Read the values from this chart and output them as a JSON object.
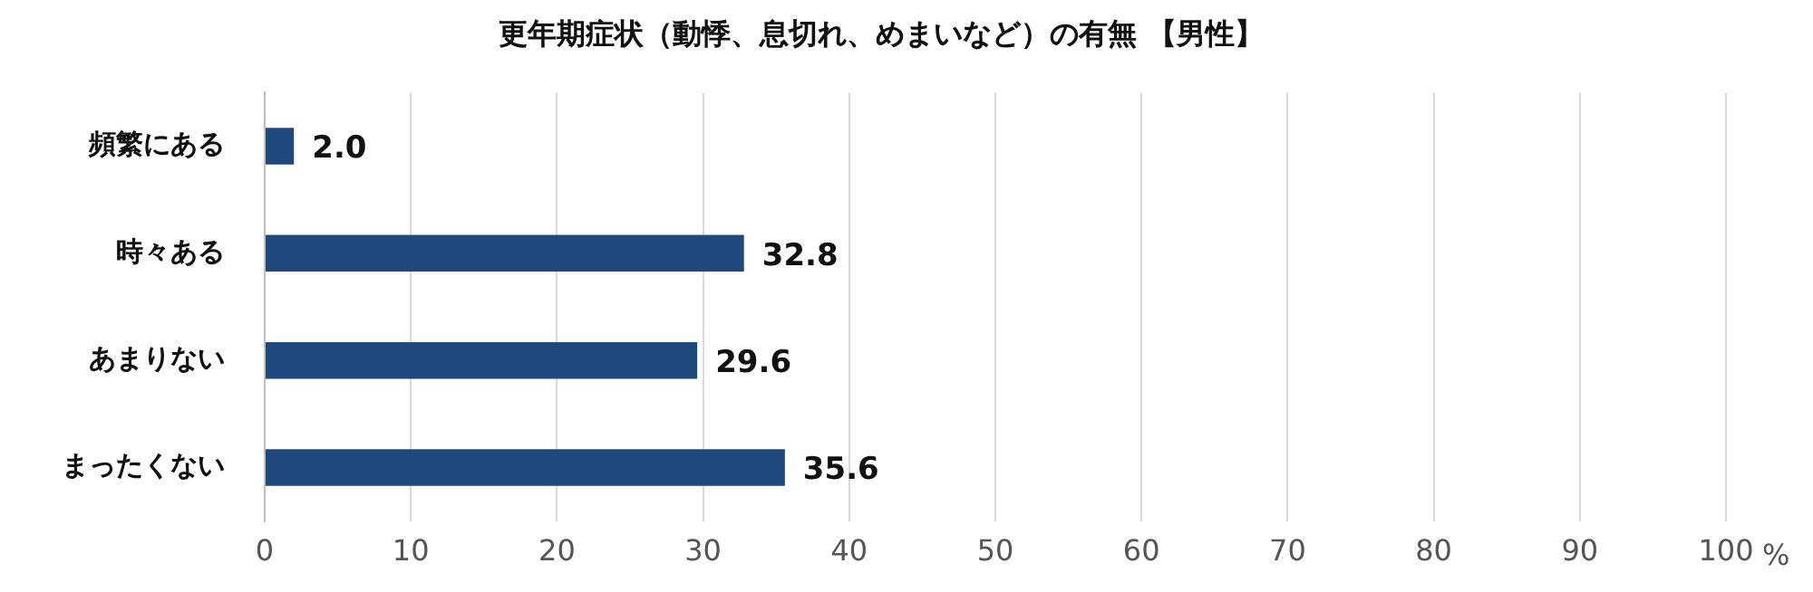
{
  "chart_data": {
    "type": "bar",
    "orientation": "horizontal",
    "title": "更年期症状（動悸、息切れ、めまいなど）の有無 【男性】",
    "xlabel": "%",
    "categories": [
      "頻繁にある",
      "時々ある",
      "あまりない",
      "まったくない"
    ],
    "values": [
      2.0,
      32.8,
      29.6,
      35.6
    ],
    "value_labels": [
      "2.0",
      "32.8",
      "29.6",
      "35.6"
    ],
    "color": "#1f497d",
    "xlim": [
      0,
      100
    ],
    "xticks": [
      0,
      10,
      20,
      30,
      40,
      50,
      60,
      70,
      80,
      90,
      100
    ],
    "grid": "x"
  }
}
